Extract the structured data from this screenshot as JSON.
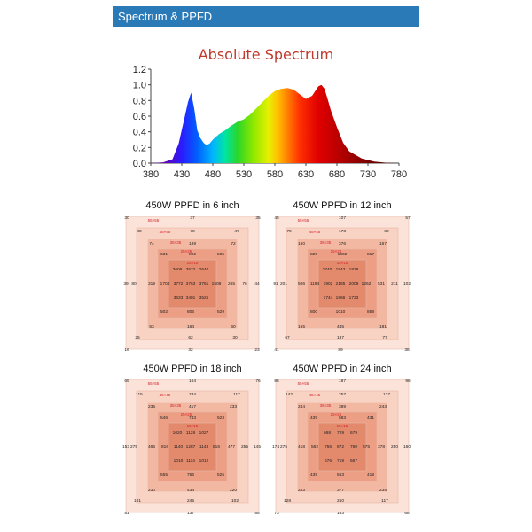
{
  "header": {
    "title": "Spectrum & PPFD"
  },
  "chart_data": [
    {
      "type": "area",
      "title": "Absolute Spectrum",
      "xlabel": "",
      "ylabel": "",
      "xlim": [
        380,
        780
      ],
      "ylim": [
        0,
        1.2
      ],
      "x_ticks": [
        "380",
        "430",
        "480",
        "530",
        "580",
        "630",
        "680",
        "730",
        "780"
      ],
      "y_ticks": [
        "0.0",
        "0.2",
        "0.4",
        "0.6",
        "0.8",
        "1.0",
        "1.2"
      ],
      "fill": "visible-spectrum rainbow gradient",
      "x": [
        380,
        400,
        415,
        425,
        435,
        440,
        445,
        450,
        455,
        460,
        465,
        470,
        475,
        480,
        490,
        500,
        510,
        520,
        530,
        540,
        550,
        560,
        570,
        580,
        590,
        600,
        610,
        620,
        630,
        640,
        650,
        655,
        660,
        665,
        670,
        680,
        690,
        700,
        720,
        740,
        760,
        780
      ],
      "y": [
        0,
        0.01,
        0.05,
        0.25,
        0.6,
        0.78,
        0.9,
        0.7,
        0.42,
        0.32,
        0.26,
        0.23,
        0.25,
        0.3,
        0.37,
        0.42,
        0.48,
        0.53,
        0.56,
        0.62,
        0.7,
        0.78,
        0.86,
        0.92,
        0.95,
        0.96,
        0.94,
        0.88,
        0.82,
        0.86,
        0.98,
        1.0,
        0.95,
        0.82,
        0.68,
        0.46,
        0.26,
        0.15,
        0.06,
        0.02,
        0.005,
        0
      ]
    },
    {
      "type": "heatmap",
      "title": "450W PPFD in 6 inch",
      "zone_labels": [
        "55×55",
        "45×45",
        "35×35",
        "25×25",
        "15×15"
      ],
      "values": {
        "r0": [
          "30",
          "37",
          "35"
        ],
        "r1": [
          "40",
          "78",
          "47"
        ],
        "r2": [
          "74",
          "189",
          "72"
        ],
        "r3": [
          "631",
          "892",
          "505"
        ],
        "r4a": [
          "3608",
          "3522",
          "2640"
        ],
        "r4b": [
          "39",
          "80",
          "319",
          "1704",
          "3772",
          "3763",
          "3761",
          "1508",
          "265",
          "76",
          "44"
        ],
        "r4c": [
          "3633",
          "3401",
          "3525"
        ],
        "r5": [
          "502",
          "806",
          "529"
        ],
        "r6": [
          "63",
          "164",
          "60"
        ],
        "r7": [
          "25",
          "62",
          "30"
        ],
        "r8": [
          "16",
          "32",
          "23"
        ]
      }
    },
    {
      "type": "heatmap",
      "title": "450W PPFD in 12 inch",
      "zone_labels": [
        "55×55",
        "45×45",
        "35×35",
        "25×25",
        "15×15"
      ],
      "values": {
        "r0": [
          "45",
          "107",
          "57"
        ],
        "r1": [
          "70",
          "173",
          "82"
        ],
        "r2": [
          "160",
          "376",
          "167"
        ],
        "r3": [
          "820",
          "1002",
          "817"
        ],
        "r4a": [
          "1740",
          "1943",
          "1828"
        ],
        "r4b": [
          "91",
          "201",
          "506",
          "1194",
          "1902",
          "2185",
          "2009",
          "1262",
          "531",
          "211",
          "102"
        ],
        "r4c": [
          "1744",
          "1866",
          "1733"
        ],
        "r5": [
          "800",
          "1010",
          "858"
        ],
        "r6": [
          "165",
          "445",
          "181"
        ],
        "r7": [
          "67",
          "187",
          "77"
        ],
        "r8": [
          "41",
          "89",
          "38"
        ]
      }
    },
    {
      "type": "heatmap",
      "title": "450W PPFD in 18 inch",
      "zone_labels": [
        "55×55",
        "45×45",
        "35×35",
        "25×25",
        "15×15"
      ],
      "values": {
        "r0": [
          "69",
          "164",
          "76"
        ],
        "r1": [
          "115",
          "234",
          "117"
        ],
        "r2": [
          "235",
          "417",
          "233"
        ],
        "r3": [
          "546",
          "743",
          "523"
        ],
        "r4a": [
          "1020",
          "1128",
          "1027"
        ],
        "r4b": [
          "153",
          "275",
          "466",
          "816",
          "1140",
          "1287",
          "1143",
          "816",
          "477",
          "255",
          "145"
        ],
        "r4c": [
          "1010",
          "1114",
          "1012"
        ],
        "r5": [
          "555",
          "766",
          "525"
        ],
        "r6": [
          "230",
          "434",
          "220"
        ],
        "r7": [
          "101",
          "245",
          "102"
        ],
        "r8": [
          "51",
          "137",
          "55"
        ]
      }
    },
    {
      "type": "heatmap",
      "title": "450W PPFD in 24 inch",
      "zone_labels": [
        "55×55",
        "45×45",
        "35×35",
        "25×25",
        "15×15"
      ],
      "values": {
        "r0": [
          "86",
          "187",
          "96"
        ],
        "r1": [
          "142",
          "257",
          "137"
        ],
        "r2": [
          "244",
          "389",
          "243"
        ],
        "r3": [
          "439",
          "583",
          "431"
        ],
        "r4a": [
          "668",
          "729",
          "679"
        ],
        "r4b": [
          "174",
          "275",
          "418",
          "562",
          "756",
          "872",
          "760",
          "575",
          "378",
          "250",
          "160"
        ],
        "r4c": [
          "676",
          "719",
          "667"
        ],
        "r5": [
          "435",
          "563",
          "418"
        ],
        "r6": [
          "243",
          "377",
          "235"
        ],
        "r7": [
          "128",
          "250",
          "117"
        ],
        "r8": [
          "73",
          "163",
          "68"
        ]
      }
    }
  ]
}
